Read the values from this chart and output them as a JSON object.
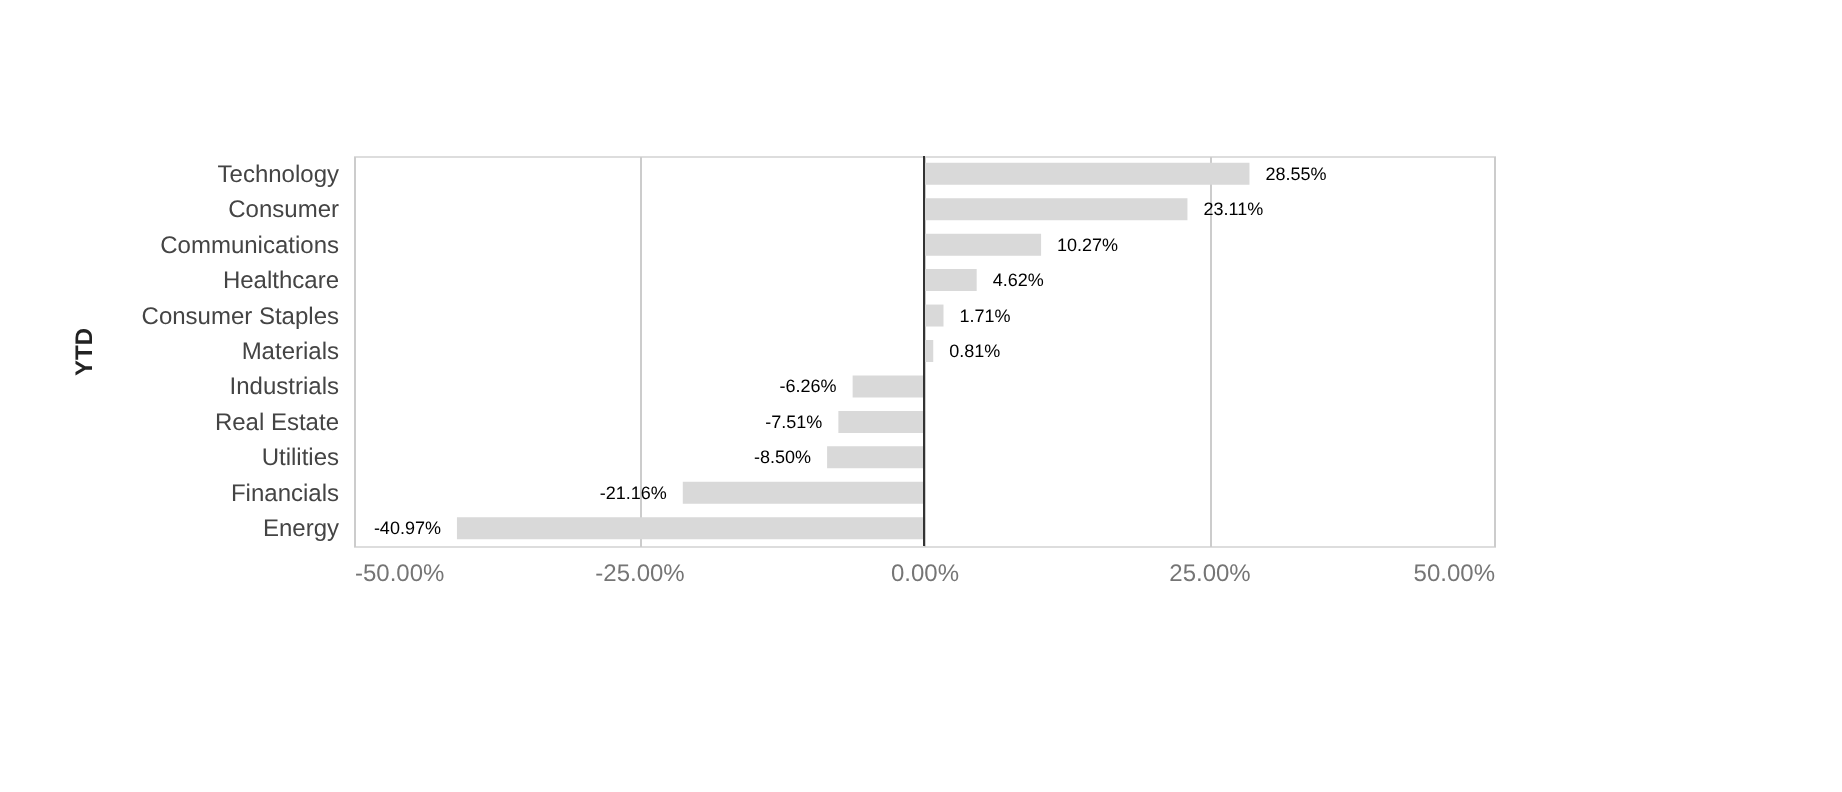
{
  "chart_data": {
    "type": "bar",
    "orientation": "horizontal",
    "ylabel": "YTD",
    "categories": [
      "Technology",
      "Consumer",
      "Communications",
      "Healthcare",
      "Consumer Staples",
      "Materials",
      "Industrials",
      "Real Estate",
      "Utilities",
      "Financials",
      "Energy"
    ],
    "values": [
      28.55,
      23.11,
      10.27,
      4.62,
      1.71,
      0.81,
      -6.26,
      -7.51,
      -8.5,
      -21.16,
      -40.97
    ],
    "value_labels": [
      "28.55%",
      "23.11%",
      "10.27%",
      "4.62%",
      "1.71%",
      "0.81%",
      "-6.26%",
      "-7.51%",
      "-8.50%",
      "-21.16%",
      "-40.97%"
    ],
    "color": "#d9d9d9",
    "xlim": [
      -50,
      50
    ],
    "xticks": [
      {
        "value": -50,
        "label": "-50.00%"
      },
      {
        "value": -25,
        "label": "-25.00%"
      },
      {
        "value": 0,
        "label": "0.00%"
      },
      {
        "value": 25,
        "label": "25.00%"
      },
      {
        "value": 50,
        "label": "50.00%"
      }
    ],
    "grid": "x"
  }
}
